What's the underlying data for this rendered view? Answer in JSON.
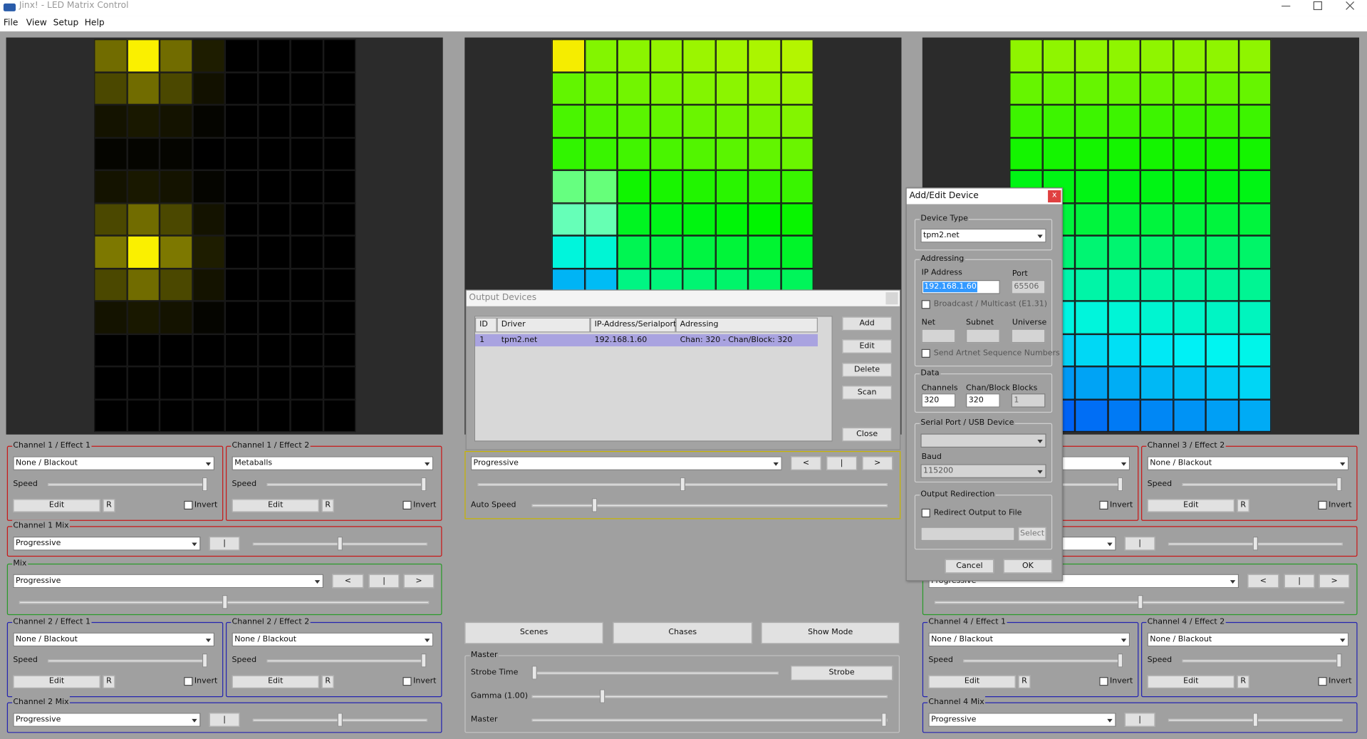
{
  "window": {
    "title": "Jinx! - LED Matrix Control"
  },
  "menu": [
    "File",
    "View",
    "Setup",
    "Help"
  ],
  "left": {
    "effects": [
      {
        "title": "Channel 1 / Effect 1",
        "effect": "None / Blackout",
        "speed": "Speed",
        "edit": "Edit",
        "r": "R",
        "invert": "Invert"
      },
      {
        "title": "Channel 1 / Effect 2",
        "effect": "Metaballs",
        "speed": "Speed",
        "edit": "Edit",
        "r": "R",
        "invert": "Invert"
      }
    ],
    "mix1": {
      "title": "Channel 1 Mix",
      "mode": "Progressive",
      "button": "|"
    },
    "mix": {
      "title": "Mix",
      "mode": "Progressive",
      "prev": "<",
      "pause": "|",
      "next": ">"
    },
    "effects2": [
      {
        "title": "Channel 2 / Effect 1",
        "effect": "None / Blackout",
        "speed": "Speed",
        "edit": "Edit",
        "r": "R",
        "invert": "Invert"
      },
      {
        "title": "Channel 2 / Effect 2",
        "effect": "None / Blackout",
        "speed": "Speed",
        "edit": "Edit",
        "r": "R",
        "invert": "Invert"
      }
    ],
    "mix2": {
      "title": "Channel 2 Mix",
      "mode": "Progressive",
      "button": "|"
    }
  },
  "right": {
    "effects": [
      {
        "invert": "Invert"
      },
      {
        "title": "Channel 3 / Effect 2",
        "effect": "None / Blackout",
        "speed": "Speed",
        "edit": "Edit",
        "r": "R",
        "invert": "Invert"
      }
    ],
    "mix1": {
      "button": "|"
    },
    "mix": {
      "mode": "Progressive",
      "prev": "<",
      "pause": "|",
      "next": ">"
    },
    "effects2": [
      {
        "title": "Channel 4 / Effect 1",
        "effect": "None / Blackout",
        "speed": "Speed",
        "edit": "Edit",
        "r": "R",
        "invert": "Invert"
      },
      {
        "title": "Channel 4 / Effect 2",
        "effect": "None / Blackout",
        "speed": "Speed",
        "edit": "Edit",
        "r": "R",
        "invert": "Invert"
      }
    ],
    "mix2": {
      "title": "Channel 4 Mix",
      "mode": "Progressive",
      "button": "|"
    }
  },
  "center": {
    "mode": "Progressive",
    "prev": "<",
    "pause": "|",
    "next": ">",
    "auto_speed": "Auto Speed",
    "buttons": [
      "Scenes",
      "Chases",
      "Show Mode"
    ],
    "master": {
      "title": "Master",
      "strobe_time": "Strobe Time",
      "strobe": "Strobe",
      "gamma": "Gamma (1.00)",
      "master": "Master"
    }
  },
  "output_devices": {
    "title": "Output Devices",
    "columns": [
      "ID",
      "Driver",
      "IP-Address/Serialport",
      "Adressing"
    ],
    "rows": [
      [
        "1",
        "tpm2.net",
        "192.168.1.60",
        "Chan: 320 - Chan/Block: 320"
      ]
    ],
    "buttons": [
      "Add",
      "Edit",
      "Delete",
      "Scan"
    ],
    "close": "Close"
  },
  "dialog": {
    "title": "Add/Edit Device",
    "close": "x",
    "device_type": {
      "label": "Device Type",
      "value": "tpm2.net"
    },
    "addressing": {
      "label": "Addressing",
      "ip_label": "IP Address",
      "ip": "192.168.1.60",
      "port_label": "Port",
      "port": "65506",
      "broadcast": "Broadcast / Multicast (E1.31)",
      "net": "Net",
      "subnet": "Subnet",
      "universe": "Universe",
      "artnet_seq": "Send Artnet Sequence Numbers"
    },
    "data": {
      "label": "Data",
      "channels_label": "Channels",
      "channels": "320",
      "chan_block_label": "Chan/Block",
      "chan_block": "320",
      "blocks_label": "Blocks",
      "blocks": "1"
    },
    "serial": {
      "label": "Serial Port / USB Device",
      "baud_label": "Baud",
      "baud": "115200"
    },
    "redirect": {
      "label": "Output Redirection",
      "checkbox": "Redirect Output to File",
      "select": "Select"
    },
    "cancel": "Cancel",
    "ok": "OK"
  }
}
